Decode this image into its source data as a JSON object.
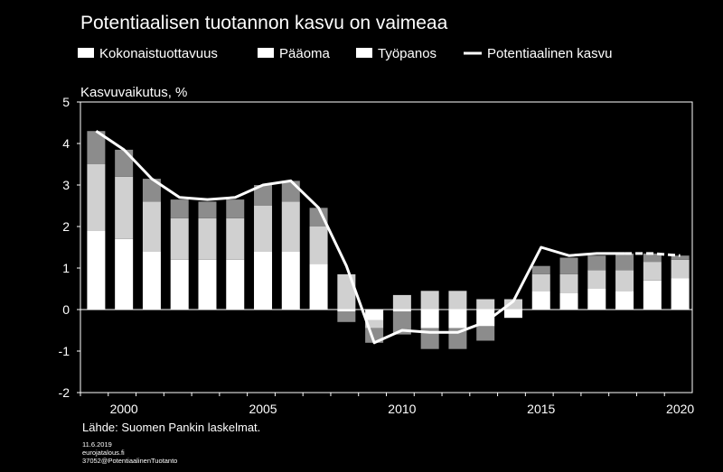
{
  "chart_data": {
    "type": "bar",
    "title": "Potentiaalisen tuotannon kasvu on vaimeaa",
    "ylabel": "Kasvuvaikutus, %",
    "xlabel": "",
    "ylim": [
      -2,
      5
    ],
    "yticks": [
      5,
      4,
      3,
      2,
      1,
      0,
      -1,
      -2
    ],
    "xtick_labels": [
      "2000",
      "2005",
      "2010",
      "2015",
      "2020"
    ],
    "years": [
      1999,
      2000,
      2001,
      2002,
      2003,
      2004,
      2005,
      2006,
      2007,
      2008,
      2009,
      2010,
      2011,
      2012,
      2013,
      2014,
      2015,
      2016,
      2017,
      2018,
      2019,
      2020
    ],
    "series": [
      {
        "name": "Kokonaistuottavuus",
        "color": "#ffffff",
        "values": [
          1.9,
          1.7,
          1.4,
          1.2,
          1.2,
          1.2,
          1.4,
          1.4,
          1.1,
          -0.05,
          -0.25,
          -0.05,
          -0.45,
          -0.45,
          -0.4,
          -0.2,
          0.45,
          0.4,
          0.5,
          0.45,
          0.7,
          0.75
        ]
      },
      {
        "name": "Pääoma",
        "color": "#d0d0d0",
        "values": [
          1.6,
          1.5,
          1.2,
          1.0,
          1.0,
          1.0,
          1.1,
          1.2,
          0.9,
          0.85,
          -0.2,
          0.35,
          0.45,
          0.45,
          0.25,
          0.25,
          0.4,
          0.45,
          0.45,
          0.5,
          0.45,
          0.45
        ]
      },
      {
        "name": "Työpanos",
        "color": "#8c8c8c",
        "values": [
          0.8,
          0.65,
          0.55,
          0.45,
          0.4,
          0.45,
          0.5,
          0.5,
          0.45,
          -0.25,
          -0.35,
          -0.55,
          -0.5,
          -0.5,
          -0.35,
          0.0,
          0.2,
          0.4,
          0.35,
          0.4,
          0.2,
          0.1
        ]
      }
    ],
    "line": {
      "name": "Potentiaalinen kasvu",
      "color": "#ffffff",
      "values": [
        4.3,
        3.85,
        3.15,
        2.7,
        2.65,
        2.7,
        3.0,
        3.1,
        2.45,
        1.05,
        -0.8,
        -0.5,
        -0.55,
        -0.55,
        -0.3,
        0.2,
        1.5,
        1.3,
        1.35,
        1.35,
        1.35,
        1.3
      ],
      "dashed_from": 2018
    },
    "legend": {
      "position": "top",
      "items": [
        "Kokonaistuottavuus",
        "Pääoma",
        "Työpanos",
        "Potentiaalinen kasvu"
      ]
    },
    "grid": false
  },
  "source_note": "Lähde: Suomen Pankin laskelmat.",
  "footer": {
    "date": "11.6.2019",
    "site": "eurojatalous.fi",
    "code": "37052@PotentiaalinenTuotanto"
  }
}
